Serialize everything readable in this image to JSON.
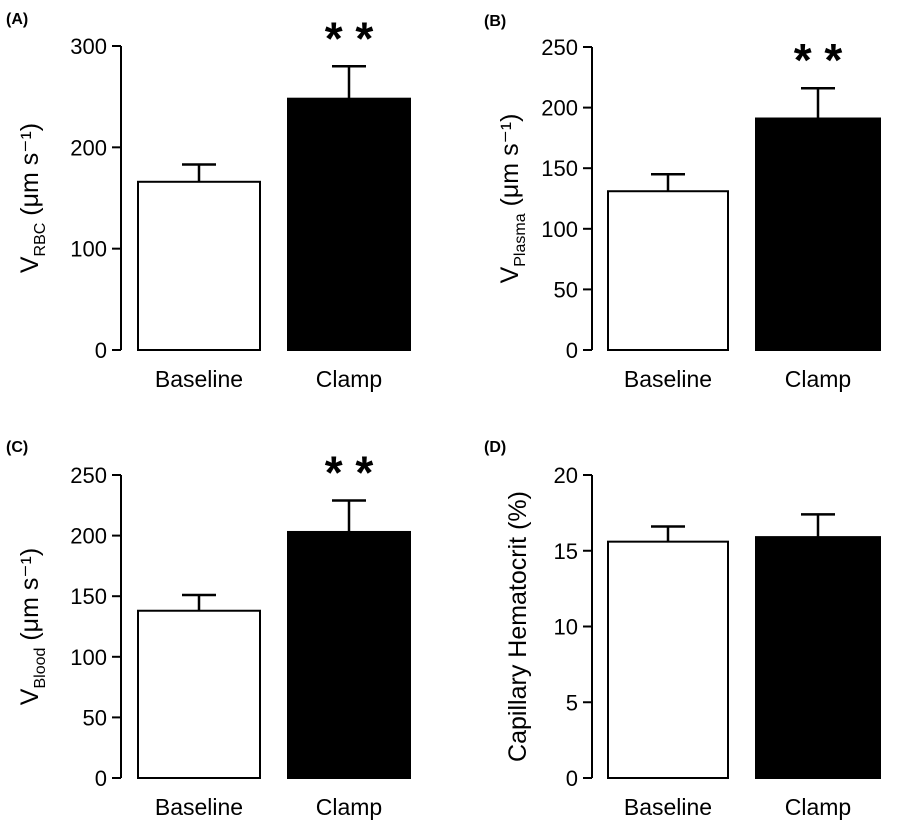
{
  "figure": {
    "colors": {
      "baseline_fill": "#ffffff",
      "clamp_fill": "#000000",
      "axis": "#000000"
    }
  },
  "chart_data": [
    {
      "panel": "(A)",
      "type": "bar",
      "categories": [
        "Baseline",
        "Clamp"
      ],
      "values": [
        166,
        248
      ],
      "errors": [
        17,
        32
      ],
      "ylim": [
        0,
        300
      ],
      "yticks": [
        0,
        100,
        200,
        300
      ],
      "ylabel": {
        "main": "V",
        "sub": "RBC",
        "unit": "(μm s⁻¹)"
      },
      "significance": [
        "",
        "* *"
      ],
      "grid": false
    },
    {
      "panel": "(B)",
      "type": "bar",
      "categories": [
        "Baseline",
        "Clamp"
      ],
      "values": [
        131,
        191
      ],
      "errors": [
        14,
        25
      ],
      "ylim": [
        0,
        250
      ],
      "yticks": [
        0,
        50,
        100,
        150,
        200,
        250
      ],
      "ylabel": {
        "main": "V",
        "sub": "Plasma",
        "unit": "(μm s⁻¹)"
      },
      "significance": [
        "",
        "* *"
      ],
      "grid": false
    },
    {
      "panel": "(C)",
      "type": "bar",
      "categories": [
        "Baseline",
        "Clamp"
      ],
      "values": [
        138,
        203
      ],
      "errors": [
        13,
        26
      ],
      "ylim": [
        0,
        250
      ],
      "yticks": [
        0,
        50,
        100,
        150,
        200,
        250
      ],
      "ylabel": {
        "main": "V",
        "sub": "Blood",
        "unit": "(μm s⁻¹)"
      },
      "significance": [
        "",
        "* *"
      ],
      "grid": false
    },
    {
      "panel": "(D)",
      "type": "bar",
      "categories": [
        "Baseline",
        "Clamp"
      ],
      "values": [
        15.6,
        15.9
      ],
      "errors": [
        1.0,
        1.5
      ],
      "ylim": [
        0,
        20
      ],
      "yticks": [
        0,
        5,
        10,
        15,
        20
      ],
      "ylabel": {
        "main": "Capillary Hematocrit (%)",
        "sub": "",
        "unit": ""
      },
      "significance": [
        "",
        ""
      ],
      "grid": false
    }
  ]
}
